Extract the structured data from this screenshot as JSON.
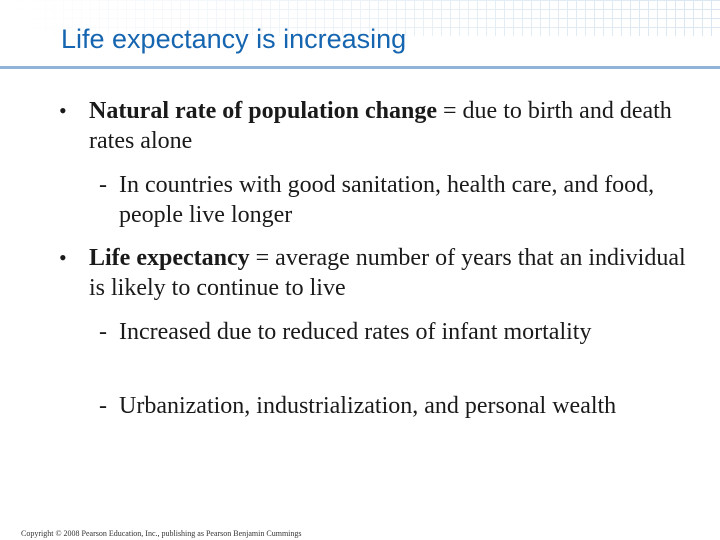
{
  "slide": {
    "title": "Life expectancy is increasing",
    "bullets": [
      {
        "term": "Natural rate of population change",
        "definition": " = due to birth and death rates alone",
        "subpoints": [
          "In countries with good sanitation, health care, and food, people live longer"
        ]
      },
      {
        "term": "Life expectancy",
        "definition": " = average number of years that an individual is likely to continue to live",
        "subpoints": [
          "Increased due to reduced rates of infant mortality",
          "Urbanization, industrialization, and personal wealth"
        ]
      }
    ],
    "bullet_symbol": "•",
    "dash_symbol": "-",
    "copyright": "Copyright © 2008 Pearson Education, Inc., publishing as Pearson Benjamin Cummings",
    "colors": {
      "title": "#1565b0",
      "rule": "#8fb3d9",
      "text": "#1a1a1a"
    }
  }
}
